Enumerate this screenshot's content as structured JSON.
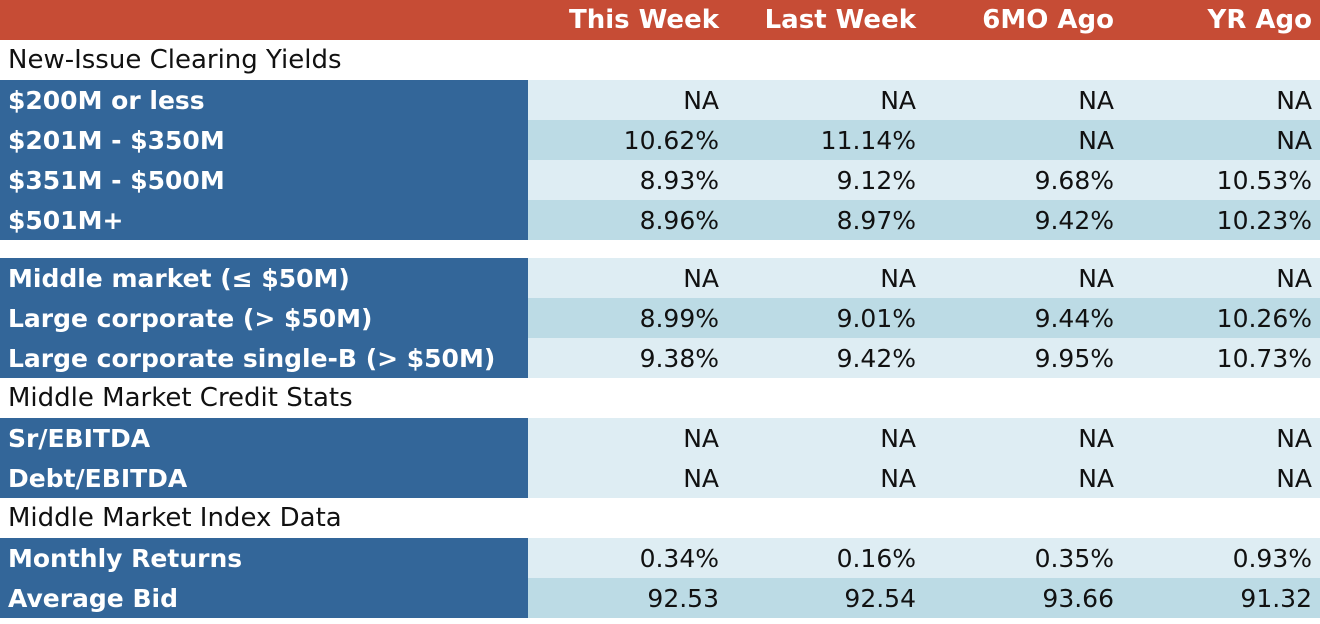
{
  "header": {
    "columns": [
      "This Week",
      "Last Week",
      "6MO Ago",
      "YR Ago"
    ]
  },
  "sections": {
    "yields_title": "New-Issue Clearing Yields",
    "credit_title": "Middle Market Credit Stats",
    "index_title": "Middle Market Index Data"
  },
  "rows": {
    "r1": {
      "label": "$200M or less",
      "values": [
        "NA",
        "NA",
        "NA",
        "NA"
      ]
    },
    "r2": {
      "label": "$201M - $350M",
      "values": [
        "10.62%",
        "11.14%",
        "NA",
        "NA"
      ]
    },
    "r3": {
      "label": "$351M - $500M",
      "values": [
        "8.93%",
        "9.12%",
        "9.68%",
        "10.53%"
      ]
    },
    "r4": {
      "label": "$501M+",
      "values": [
        "8.96%",
        "8.97%",
        "9.42%",
        "10.23%"
      ]
    },
    "r5": {
      "label": "Middle market (≤ $50M)",
      "values": [
        "NA",
        "NA",
        "NA",
        "NA"
      ]
    },
    "r6": {
      "label": "Large corporate (> $50M)",
      "values": [
        "8.99%",
        "9.01%",
        "9.44%",
        "10.26%"
      ]
    },
    "r7": {
      "label": "Large corporate single-B (> $50M)",
      "values": [
        "9.38%",
        "9.42%",
        "9.95%",
        "10.73%"
      ]
    },
    "r8": {
      "label": "Sr/EBITDA",
      "values": [
        "NA",
        "NA",
        "NA",
        "NA"
      ]
    },
    "r9": {
      "label": "Debt/EBITDA",
      "values": [
        "NA",
        "NA",
        "NA",
        "NA"
      ]
    },
    "r10": {
      "label": "Monthly Returns",
      "values": [
        "0.34%",
        "0.16%",
        "0.35%",
        "0.93%"
      ]
    },
    "r11": {
      "label": "Average Bid",
      "values": [
        "92.53",
        "92.54",
        "93.66",
        "91.32"
      ]
    }
  },
  "colors": {
    "header_bg": "#c64c35",
    "label_bg": "#336699",
    "row_light": "#deedf3",
    "row_dark": "#bcdbe5"
  }
}
